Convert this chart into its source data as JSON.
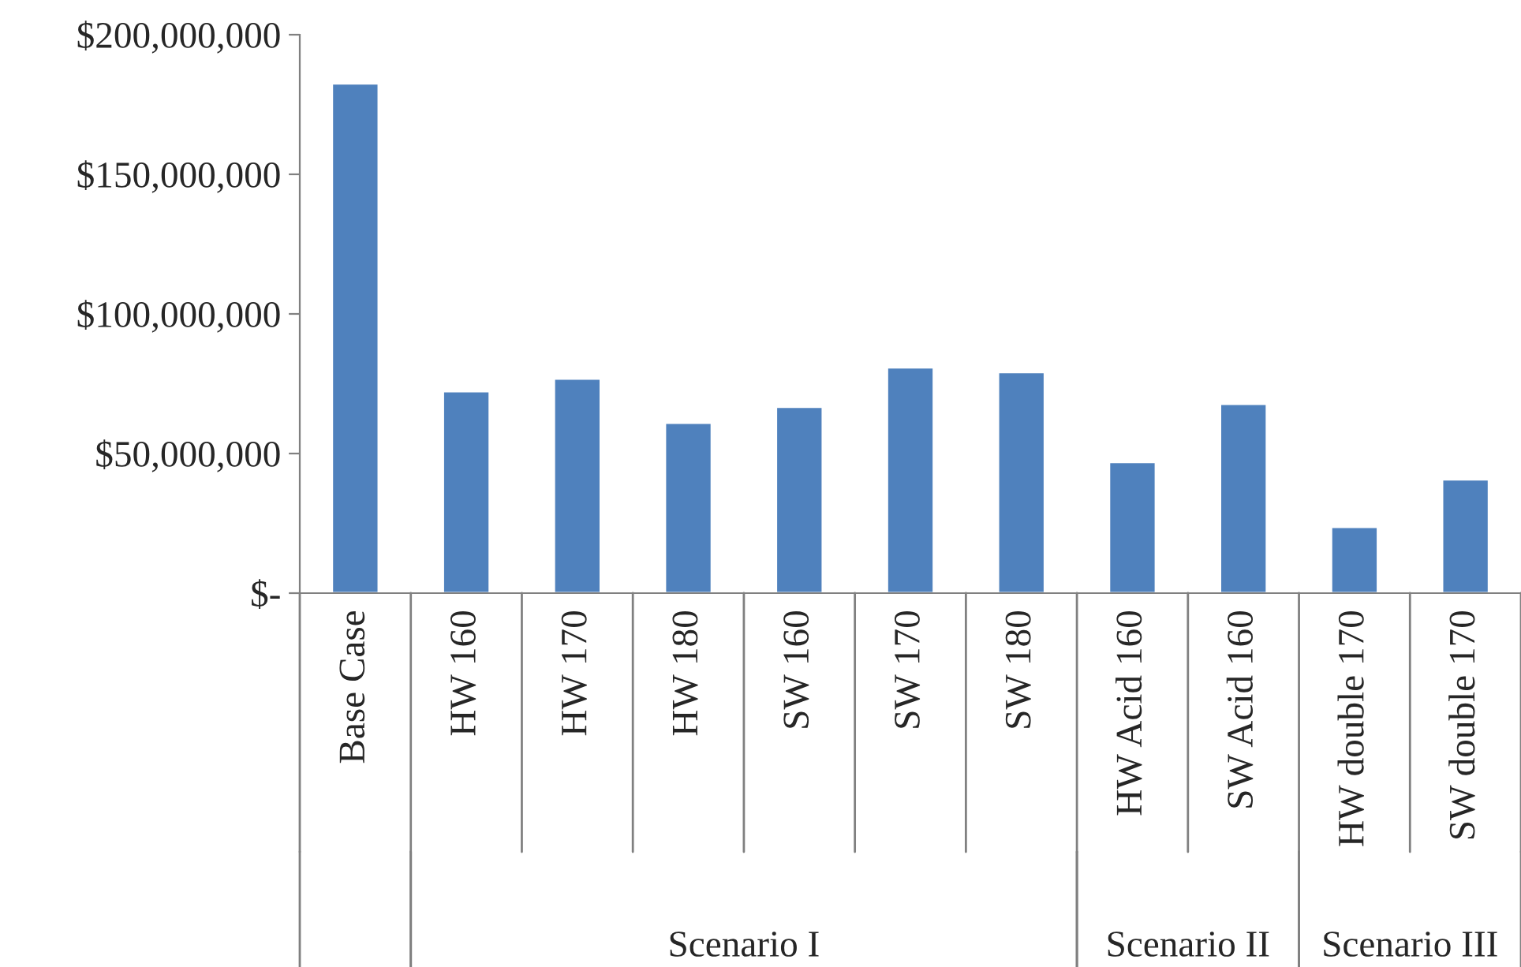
{
  "chart_data": {
    "type": "bar",
    "categories": [
      "Base Case",
      "HW 160",
      "HW 170",
      "HW 180",
      "SW 160",
      "SW 170",
      "SW 180",
      "HW Acid 160",
      "SW Acid 160",
      "HW double 170",
      "SW double 170"
    ],
    "values": [
      182500000,
      72300000,
      76800000,
      61000000,
      66700000,
      80800000,
      79100000,
      46900000,
      67800000,
      23700000,
      40700000
    ],
    "color": "#4f81bd",
    "ylim": [
      0,
      200000000
    ],
    "yticks": [
      {
        "value": 0,
        "label": "$-"
      },
      {
        "value": 50000000,
        "label": "$50,000,000"
      },
      {
        "value": 100000000,
        "label": "$100,000,000"
      },
      {
        "value": 150000000,
        "label": "$150,000,000"
      },
      {
        "value": 200000000,
        "label": "$200,000,000"
      }
    ],
    "annotations": [
      "Scenario I",
      "Scenario II",
      "Scenario III"
    ],
    "grid": false,
    "legend": false
  }
}
